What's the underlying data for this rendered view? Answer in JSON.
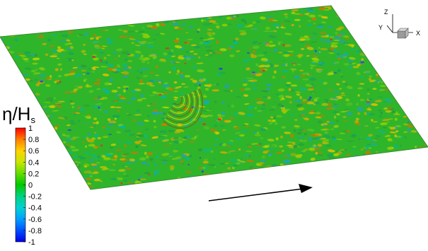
{
  "colorbar": {
    "title_main": "η/H",
    "title_sub": "s",
    "ticks": [
      "1",
      "0.8",
      "0.6",
      "0.4",
      "0.2",
      "0",
      "-0.2",
      "-0.4",
      "-0.6",
      "-0.8",
      "-1"
    ],
    "colors_top_to_bottom": [
      "#ff0000",
      "#ff7f00",
      "#ffd200",
      "#c8e600",
      "#64dc00",
      "#00c800",
      "#00d282",
      "#00d2d2",
      "#00a0ff",
      "#0050ff",
      "#0000e6"
    ]
  },
  "axes_triad": {
    "z_label": "Z",
    "y_label": "Y",
    "x_label": "X"
  },
  "surface": {
    "base_color": "#2fb52a",
    "feature": "ring-wave pattern"
  },
  "direction_arrow": {
    "icon": "wave-direction-arrow"
  }
}
